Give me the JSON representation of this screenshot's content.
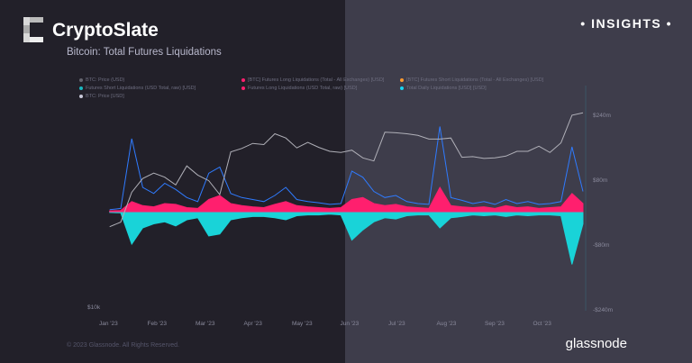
{
  "header": {
    "brand": "CryptoSlate",
    "subtitle": "Bitcoin: Total Futures Liquidations",
    "badge": "• INSIGHTS •"
  },
  "footer": {
    "copyright": "© 2023 Glassnode. All Rights Reserved.",
    "logo": "glassnode"
  },
  "colors": {
    "background_left": "#222029",
    "background_right": "#3e3d4b",
    "price": "#b0b0b8",
    "long": "#ff1f6e",
    "short": "#19d3d8",
    "total": "#2f7bff"
  },
  "chart_data": {
    "type": "area",
    "title": "Bitcoin: Total Futures Liquidations",
    "legend": [
      {
        "label": "BTC: Price (USD)",
        "color": "#666670"
      },
      {
        "label": "[BTC] Futures Long Liquidations (Total - All Exchanges) [USD]",
        "color": "#ff1f6e"
      },
      {
        "label": "[BTC] Futures Short Liquidations (Total - All Exchanges) [USD]",
        "color": "#ff9a2e"
      },
      {
        "label": "Futures Short Liquidations (USD Total, raw) [USD]",
        "color": "#19b8c0"
      },
      {
        "label": "Futures Long Liquidations (USD Total, raw) [USD]",
        "color": "#ff1f6e"
      },
      {
        "label": "Total Daily Liquidations [USD] [USD]",
        "color": "#19d3f0"
      },
      {
        "label": "BTC: Price [USD]",
        "color": "#c8c8d8"
      }
    ],
    "legend_position": "top-left",
    "x_ticks": [
      "Jan '23",
      "Feb '23",
      "Mar '23",
      "Apr '23",
      "May '23",
      "Jun '23",
      "Jul '23",
      "Aug '23",
      "Sep '23",
      "Oct '23"
    ],
    "y_left_ticks": [
      "$10k"
    ],
    "y_right_ticks": [
      "$240m",
      "$80m",
      "-$80m",
      "-$240m"
    ],
    "y_right_range_musd": [
      -240,
      240
    ],
    "y_left_scale": "log",
    "grid": false,
    "x": [
      "2023-01-02",
      "2023-01-09",
      "2023-01-16",
      "2023-01-23",
      "2023-01-30",
      "2023-02-06",
      "2023-02-13",
      "2023-02-20",
      "2023-02-27",
      "2023-03-06",
      "2023-03-13",
      "2023-03-20",
      "2023-03-27",
      "2023-04-03",
      "2023-04-10",
      "2023-04-17",
      "2023-04-24",
      "2023-05-01",
      "2023-05-08",
      "2023-05-15",
      "2023-05-22",
      "2023-05-29",
      "2023-06-05",
      "2023-06-12",
      "2023-06-19",
      "2023-06-26",
      "2023-07-03",
      "2023-07-10",
      "2023-07-17",
      "2023-07-24",
      "2023-07-31",
      "2023-08-07",
      "2023-08-14",
      "2023-08-21",
      "2023-08-28",
      "2023-09-04",
      "2023-09-11",
      "2023-09-18",
      "2023-09-25",
      "2023-10-02",
      "2023-10-09",
      "2023-10-16",
      "2023-10-23",
      "2023-10-30"
    ],
    "series": [
      {
        "name": "BTC: Price [USD]",
        "unit": "kUSD",
        "values": [
          16.7,
          17.2,
          20.8,
          22.7,
          23.5,
          22.9,
          21.8,
          24.6,
          23.2,
          22.4,
          20.5,
          26.9,
          27.5,
          28.4,
          28.2,
          30.2,
          29.4,
          27.6,
          28.6,
          27.7,
          27.0,
          26.8,
          27.2,
          25.9,
          25.4,
          30.5,
          30.4,
          30.2,
          29.9,
          29.2,
          29.2,
          29.4,
          26.0,
          26.1,
          25.8,
          25.9,
          26.2,
          27.0,
          27.0,
          27.9,
          26.8,
          28.5,
          34.0,
          34.5
        ]
      },
      {
        "name": "Futures Long Liquidations (USD Total, raw) [USD]",
        "unit": "mUSD",
        "values": [
          2,
          3,
          25,
          15,
          12,
          20,
          18,
          10,
          8,
          30,
          40,
          20,
          15,
          12,
          10,
          18,
          25,
          15,
          12,
          10,
          8,
          10,
          30,
          35,
          20,
          15,
          18,
          12,
          10,
          8,
          60,
          15,
          12,
          10,
          12,
          8,
          15,
          10,
          12,
          8,
          10,
          12,
          45,
          20
        ]
      },
      {
        "name": "Futures Short Liquidations (USD Total, raw) [USD]",
        "unit": "mUSD",
        "values": [
          2,
          3,
          80,
          40,
          30,
          25,
          35,
          20,
          15,
          60,
          55,
          20,
          15,
          12,
          12,
          15,
          20,
          10,
          8,
          8,
          6,
          8,
          70,
          45,
          25,
          15,
          18,
          10,
          8,
          8,
          40,
          15,
          12,
          8,
          10,
          8,
          12,
          8,
          10,
          8,
          8,
          10,
          130,
          30
        ]
      },
      {
        "name": "Total Daily Liquidations [USD] [USD]",
        "unit": "mUSD",
        "values": [
          5,
          8,
          180,
          60,
          45,
          70,
          55,
          35,
          25,
          95,
          110,
          45,
          35,
          30,
          25,
          40,
          60,
          30,
          25,
          22,
          18,
          20,
          100,
          85,
          50,
          35,
          40,
          25,
          20,
          18,
          210,
          35,
          28,
          20,
          25,
          18,
          30,
          20,
          25,
          18,
          20,
          25,
          160,
          50
        ]
      }
    ]
  }
}
